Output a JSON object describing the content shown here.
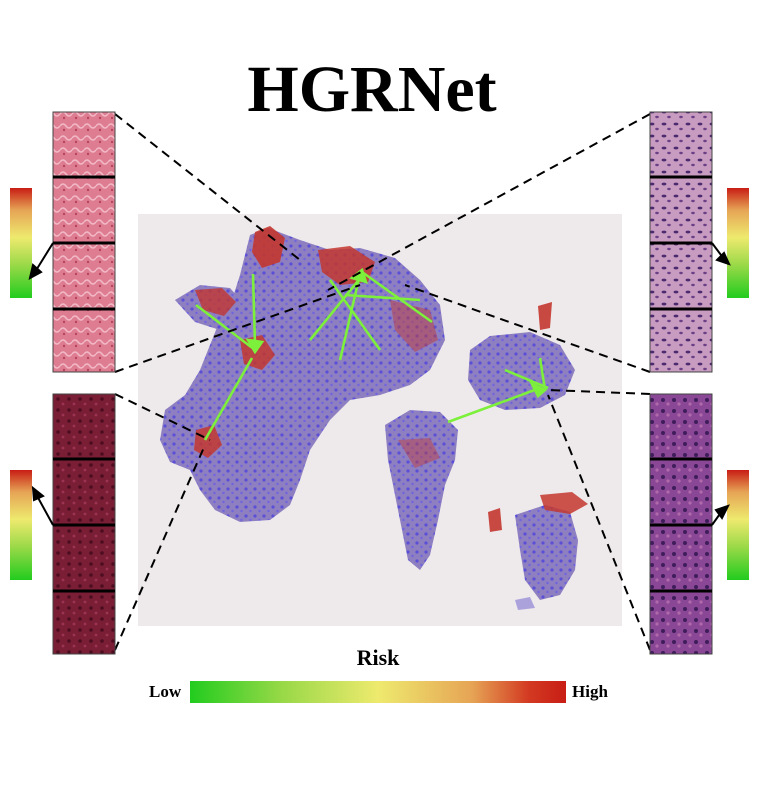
{
  "title": "HGRNet",
  "legend": {
    "title": "Risk",
    "low_label": "Low",
    "high_label": "High",
    "gradient_colors": [
      "#22cc1f",
      "#9ad948",
      "#eeea6e",
      "#e6a455",
      "#d33a22",
      "#c81d15"
    ]
  },
  "colors": {
    "tissue_purple": "#7b6ab8",
    "tissue_red": "#c3372f",
    "arrow_green": "#7cf03a",
    "slide_bg": "#eeeaec"
  },
  "patches": [
    {
      "name": "left-top",
      "color": "#d96a80"
    },
    {
      "name": "left-bottom",
      "color": "#7a1e36"
    },
    {
      "name": "right-top",
      "color": "#a86a9a"
    },
    {
      "name": "right-bottom",
      "color": "#7b3a86"
    }
  ],
  "risk_bar_indicators": [
    {
      "name": "left-top",
      "level": "low"
    },
    {
      "name": "left-bottom",
      "level": "high"
    },
    {
      "name": "right-top",
      "level": "low"
    },
    {
      "name": "right-bottom",
      "level": "high"
    }
  ]
}
